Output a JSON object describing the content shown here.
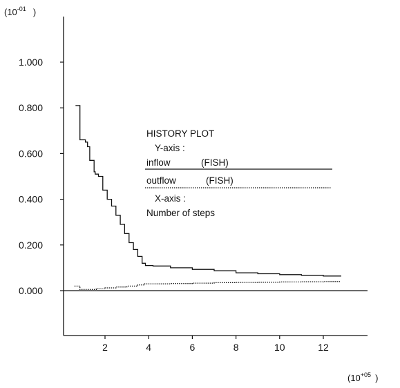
{
  "chart_data": {
    "type": "line",
    "y_scale_label": {
      "base": "(10",
      "exp": "-01",
      "close": ")"
    },
    "x_scale_label": {
      "base": "(10",
      "exp": "+05",
      "close": ")"
    },
    "xlim": [
      0.3,
      14.0
    ],
    "ylim": [
      -0.2,
      1.2
    ],
    "xticks": [
      2,
      4,
      6,
      8,
      10,
      12
    ],
    "yticks": [
      0.0,
      0.2,
      0.4,
      0.6,
      0.8,
      1.0
    ],
    "ytick_labels": [
      "0.000",
      "0.200",
      "0.400",
      "0.600",
      "0.800",
      "1.000"
    ],
    "xtick_labels": [
      "2",
      "4",
      "6",
      "8",
      "10",
      "12"
    ],
    "series": [
      {
        "name": "inflow",
        "style": "solid",
        "x": [
          0.65,
          0.85,
          0.85,
          1.1,
          1.2,
          1.3,
          1.5,
          1.55,
          1.7,
          1.9,
          2.1,
          2.3,
          2.5,
          2.7,
          2.9,
          3.1,
          3.3,
          3.5,
          3.7,
          3.85,
          4.2,
          5.0,
          6.0,
          7.0,
          8.0,
          9.0,
          10.0,
          11.0,
          12.0,
          12.8
        ],
        "y": [
          0.81,
          0.8,
          0.66,
          0.65,
          0.63,
          0.57,
          0.52,
          0.51,
          0.5,
          0.44,
          0.4,
          0.37,
          0.33,
          0.29,
          0.25,
          0.21,
          0.18,
          0.15,
          0.12,
          0.11,
          0.108,
          0.1,
          0.093,
          0.087,
          0.078,
          0.074,
          0.07,
          0.067,
          0.064,
          0.062
        ]
      },
      {
        "name": "outflow",
        "style": "dotted",
        "x": [
          0.6,
          0.8,
          0.85,
          1.2,
          1.6,
          2.0,
          2.5,
          3.0,
          3.5,
          3.8,
          4.0,
          5.0,
          6.0,
          7.0,
          8.0,
          9.0,
          10.0,
          11.0,
          12.0,
          12.8
        ],
        "y": [
          0.02,
          0.02,
          0.005,
          0.005,
          0.008,
          0.012,
          0.016,
          0.02,
          0.025,
          0.03,
          0.03,
          0.031,
          0.033,
          0.035,
          0.036,
          0.037,
          0.038,
          0.039,
          0.04,
          0.04
        ]
      }
    ],
    "legend": {
      "title": "HISTORY PLOT",
      "y_axis_label": "Y-axis :",
      "entries": [
        {
          "label": "inflow",
          "source": "(FISH)",
          "style": "solid"
        },
        {
          "label": "outflow",
          "source": "(FISH)",
          "style": "dotted"
        }
      ],
      "x_axis_label": "X-axis :",
      "x_axis_desc": "Number of steps",
      "placement": "center-right"
    },
    "grid": false,
    "zero_line": true
  }
}
